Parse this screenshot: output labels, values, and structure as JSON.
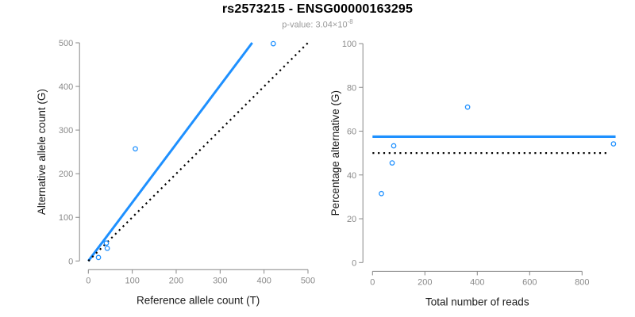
{
  "header": {
    "title": "rs2573215 - ENSG00000163295",
    "pvalue_text": "p-value: 3.04×10",
    "pvalue_exponent": "-8"
  },
  "style": {
    "accent_blue": "#1E90FF",
    "axis_color": "#878787",
    "tick_label_color": "#8a8a8a",
    "axis_title_color": "#1a1a1a",
    "point_color": "#1E90FF",
    "dotted_color": "#000000"
  },
  "chart_data": [
    {
      "type": "scatter",
      "name": "allele-counts",
      "xlabel": "Reference allele count (T)",
      "ylabel": "Alternative allele count (G)",
      "xlim": [
        0,
        500
      ],
      "ylim": [
        0,
        500
      ],
      "xticks": [
        0,
        100,
        200,
        300,
        400,
        500
      ],
      "yticks": [
        0,
        100,
        200,
        300,
        400,
        500
      ],
      "grid": false,
      "points": [
        [
          23,
          8
        ],
        [
          41,
          41
        ],
        [
          43,
          29
        ],
        [
          107,
          257
        ],
        [
          421,
          498
        ]
      ],
      "point_color": "#1E90FF",
      "lines": [
        {
          "name": "regression-line",
          "x1": 0,
          "y1": 0,
          "x2": 373,
          "y2": 500,
          "color": "#1E90FF",
          "style": "solid",
          "width": 3
        },
        {
          "name": "identity-line",
          "x1": 0,
          "y1": 0,
          "x2": 500,
          "y2": 500,
          "color": "#000000",
          "style": "dotted",
          "width": 2.2
        }
      ]
    },
    {
      "type": "scatter",
      "name": "percentage-reads",
      "xlabel": "Total number of reads",
      "ylabel": "Percentage alternative (G)",
      "xlim": [
        0,
        930
      ],
      "ylim": [
        0,
        100
      ],
      "xticks": [
        0,
        200,
        400,
        600,
        800
      ],
      "yticks": [
        0,
        20,
        40,
        60,
        80,
        100
      ],
      "grid": false,
      "points": [
        [
          34,
          31.5
        ],
        [
          75,
          45.5
        ],
        [
          81,
          53.3
        ],
        [
          363,
          71
        ],
        [
          920,
          54.2
        ]
      ],
      "point_color": "#1E90FF",
      "lines": [
        {
          "name": "mean-percentage-line",
          "x1": 0,
          "y1": 57.5,
          "x2": 928,
          "y2": 57.5,
          "color": "#1E90FF",
          "style": "solid",
          "width": 3.2
        },
        {
          "name": "expected-50-line",
          "x1": 0,
          "y1": 50,
          "x2": 893,
          "y2": 50,
          "color": "#000000",
          "style": "dotted",
          "width": 2.2
        }
      ]
    }
  ]
}
